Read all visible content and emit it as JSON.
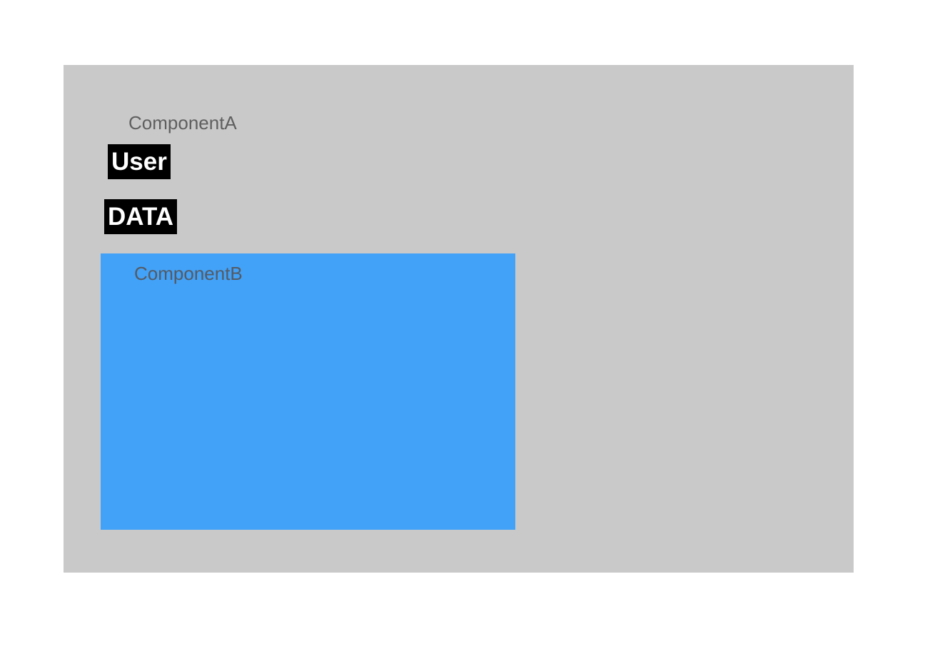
{
  "components": {
    "a": {
      "label": "ComponentA",
      "tags": {
        "user": "User",
        "data": "DATA"
      }
    },
    "b": {
      "label": "ComponentB"
    }
  },
  "colors": {
    "component_a_bg": "#c9c9c9",
    "component_b_bg": "#42a2f8",
    "tag_bg": "#000000",
    "tag_text": "#ffffff",
    "label_text": "#5f5f5f"
  }
}
